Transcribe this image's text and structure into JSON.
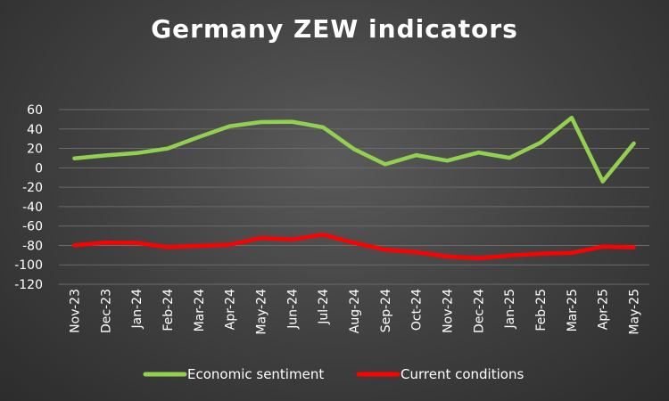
{
  "chart_data": {
    "type": "line",
    "title": "Germany ZEW indicators",
    "xlabel": "",
    "ylabel": "",
    "ylim": [
      -120,
      60
    ],
    "yticks": [
      60,
      40,
      20,
      0,
      -20,
      -40,
      -60,
      -80,
      -100,
      -120
    ],
    "grid": true,
    "legend_position": "bottom",
    "categories": [
      "Nov-23",
      "Dec-23",
      "Jan-24",
      "Feb-24",
      "Mar-24",
      "Apr-24",
      "May-24",
      "Jun-24",
      "Jul-24",
      "Aug-24",
      "Sep-24",
      "Oct-24",
      "Nov-24",
      "Dec-24",
      "Jan-25",
      "Feb-25",
      "Mar-25",
      "Apr-25",
      "May-25"
    ],
    "series": [
      {
        "name": "Economic sentiment",
        "color": "#92d050",
        "values": [
          9.8,
          12.8,
          15.2,
          19.9,
          31.7,
          42.9,
          47.1,
          47.5,
          41.8,
          19.2,
          3.6,
          13.1,
          7.4,
          15.7,
          10.3,
          26.0,
          51.6,
          -14.0,
          25.2
        ]
      },
      {
        "name": "Current conditions",
        "color": "#ff0000",
        "values": [
          -79.8,
          -77.1,
          -77.3,
          -81.7,
          -80.5,
          -79.2,
          -72.3,
          -73.8,
          -68.9,
          -77.3,
          -84.5,
          -86.9,
          -91.4,
          -93.1,
          -90.4,
          -88.5,
          -87.6,
          -81.2,
          -82.0
        ]
      }
    ]
  }
}
